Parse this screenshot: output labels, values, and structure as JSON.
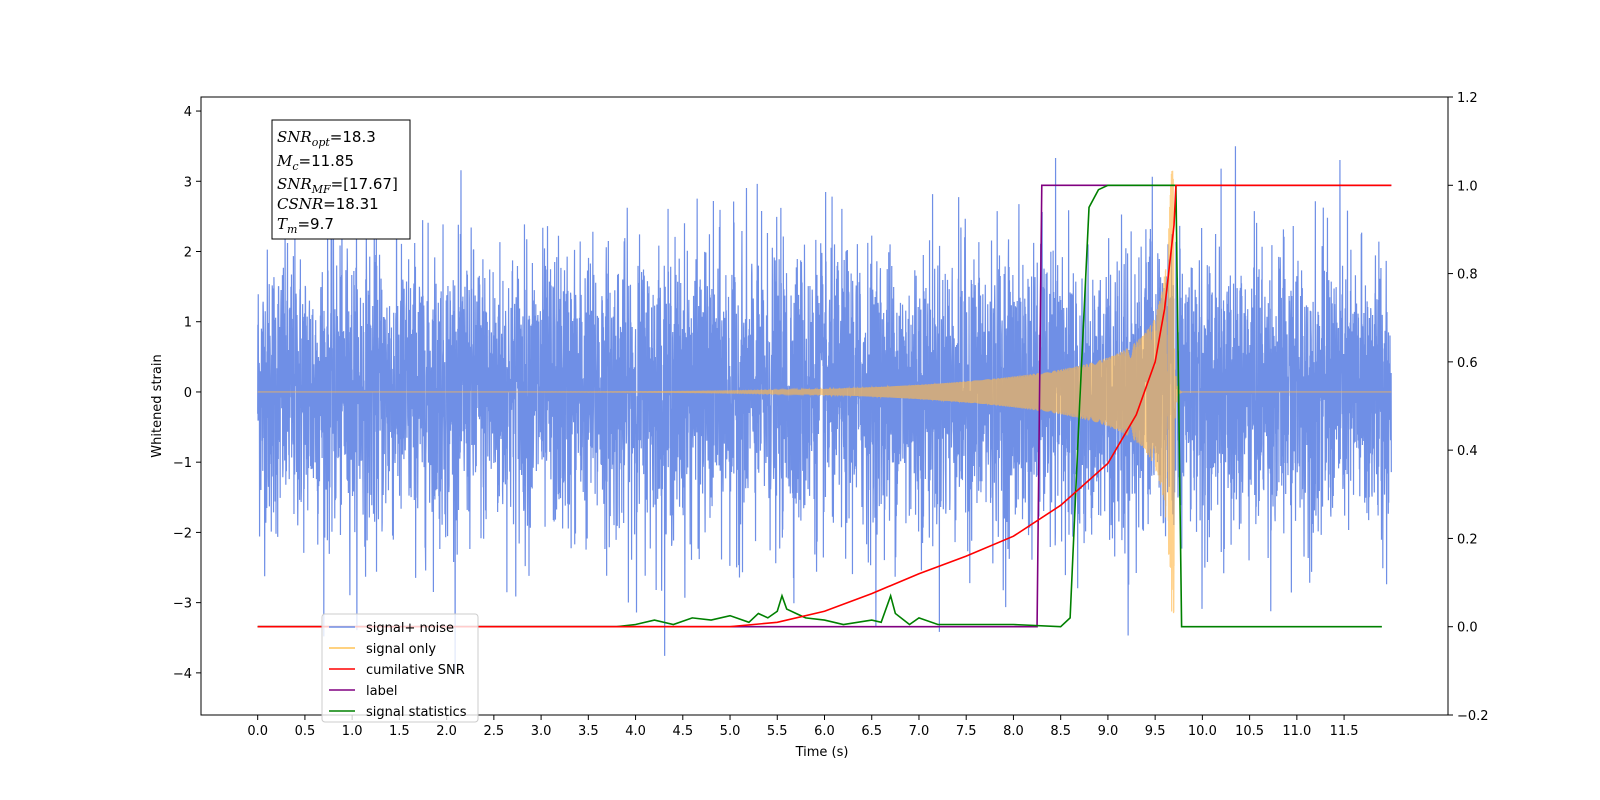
{
  "chart_data": {
    "type": "line",
    "xlabel": "Time (s)",
    "ylabel": "Whitened strain",
    "xlim": [
      -0.6,
      12.6
    ],
    "ylim": [
      -4.6,
      4.2
    ],
    "y2lim": [
      -0.2,
      1.2
    ],
    "x_ticks": [
      "0.0",
      "0.5",
      "1.0",
      "1.5",
      "2.0",
      "2.5",
      "3.0",
      "3.5",
      "4.0",
      "4.5",
      "5.0",
      "5.5",
      "6.0",
      "6.5",
      "7.0",
      "7.5",
      "8.0",
      "8.5",
      "9.0",
      "9.5",
      "10.0",
      "10.5",
      "11.0",
      "11.5"
    ],
    "y_ticks": [
      "−4",
      "−3",
      "−2",
      "−1",
      "0",
      "1",
      "2",
      "3",
      "4"
    ],
    "y2_ticks": [
      "−0.2",
      "0.0",
      "0.2",
      "0.4",
      "0.6",
      "0.8",
      "1.0",
      "1.2"
    ],
    "legend_placement": "lower-left",
    "legend": [
      {
        "label": "signal+ noise",
        "color": "#6f8fe6"
      },
      {
        "label": "signal only",
        "color": "#ffc456"
      },
      {
        "label": "cumilative SNR",
        "color": "#ff0000"
      },
      {
        "label": "label",
        "color": "#800080"
      },
      {
        "label": "signal statistics",
        "color": "#008000"
      }
    ],
    "info_box": {
      "snr_opt": {
        "sym": "SNR",
        "sub": "opt",
        "value": "=18.3"
      },
      "mc": {
        "sym": "M",
        "sub": "c",
        "value": "=11.85"
      },
      "snr_mf": {
        "sym": "SNR",
        "sub": "MF",
        "value": "=[17.67]"
      },
      "csnr": {
        "sym": "CSNR",
        "sub": "",
        "value": "=18.31"
      },
      "tm": {
        "sym": "T",
        "sub": "m",
        "value": "=9.7"
      }
    },
    "series": [
      {
        "name": "signal+ noise",
        "axis": "left",
        "description_values": {
          "t_start": 0.0,
          "t_end": 12.0,
          "typical_range": [
            -2.2,
            2.8
          ],
          "extremes": [
            -4.1,
            3.5
          ]
        }
      },
      {
        "name": "signal only",
        "axis": "left",
        "chirp": {
          "t_start": 5.0,
          "t_merger": 9.7,
          "peak_amplitude": 3.15
        }
      },
      {
        "name": "cumilative SNR",
        "axis": "right",
        "points": [
          [
            0.0,
            0.0
          ],
          [
            5.0,
            0.0
          ],
          [
            5.5,
            0.01
          ],
          [
            6.0,
            0.035
          ],
          [
            6.5,
            0.075
          ],
          [
            7.0,
            0.12
          ],
          [
            7.5,
            0.16
          ],
          [
            8.0,
            0.205
          ],
          [
            8.5,
            0.275
          ],
          [
            9.0,
            0.37
          ],
          [
            9.3,
            0.48
          ],
          [
            9.5,
            0.6
          ],
          [
            9.6,
            0.72
          ],
          [
            9.7,
            0.91
          ],
          [
            9.72,
            1.0
          ],
          [
            12.0,
            1.0
          ]
        ]
      },
      {
        "name": "label",
        "axis": "right",
        "points": [
          [
            0.0,
            0.0
          ],
          [
            8.25,
            0.0
          ],
          [
            8.3,
            1.0
          ],
          [
            9.72,
            1.0
          ],
          [
            12.0,
            1.0
          ]
        ]
      },
      {
        "name": "signal statistics",
        "axis": "right",
        "points": [
          [
            0.0,
            0.0
          ],
          [
            3.8,
            0.0
          ],
          [
            4.0,
            0.005
          ],
          [
            4.2,
            0.015
          ],
          [
            4.4,
            0.005
          ],
          [
            4.6,
            0.02
          ],
          [
            4.8,
            0.015
          ],
          [
            5.0,
            0.025
          ],
          [
            5.2,
            0.01
          ],
          [
            5.3,
            0.03
          ],
          [
            5.4,
            0.02
          ],
          [
            5.5,
            0.035
          ],
          [
            5.55,
            0.07
          ],
          [
            5.6,
            0.04
          ],
          [
            5.7,
            0.03
          ],
          [
            5.8,
            0.02
          ],
          [
            6.0,
            0.015
          ],
          [
            6.2,
            0.005
          ],
          [
            6.5,
            0.015
          ],
          [
            6.6,
            0.01
          ],
          [
            6.7,
            0.07
          ],
          [
            6.75,
            0.03
          ],
          [
            6.9,
            0.005
          ],
          [
            7.0,
            0.02
          ],
          [
            7.2,
            0.005
          ],
          [
            8.0,
            0.005
          ],
          [
            8.5,
            0.0
          ],
          [
            8.6,
            0.02
          ],
          [
            8.7,
            0.5
          ],
          [
            8.8,
            0.95
          ],
          [
            8.9,
            0.99
          ],
          [
            9.0,
            1.0
          ],
          [
            9.72,
            1.0
          ],
          [
            9.78,
            0.0
          ],
          [
            11.9,
            0.0
          ]
        ]
      }
    ]
  }
}
